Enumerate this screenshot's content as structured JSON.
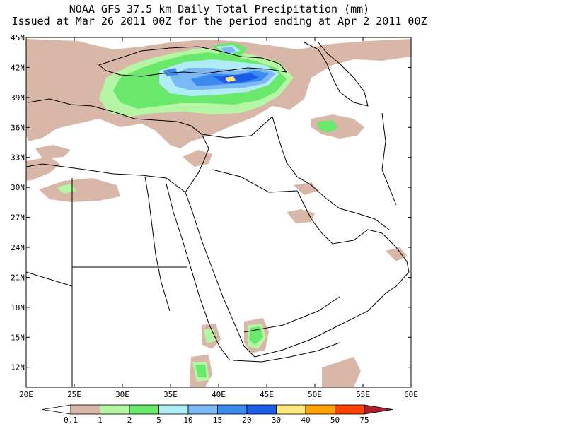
{
  "title": {
    "line1": "NOAA GFS 37.5 km Daily Total Precipitation (mm)",
    "line2": "Issued at Mar 26 2011 00Z for the period ending at Apr 2 2011 00Z"
  },
  "map": {
    "lon_range": [
      20,
      60
    ],
    "lat_range": [
      10,
      45
    ],
    "lat_ticks": [
      {
        "value": 45,
        "label": "45N"
      },
      {
        "value": 42,
        "label": "42N"
      },
      {
        "value": 39,
        "label": "39N"
      },
      {
        "value": 36,
        "label": "36N"
      },
      {
        "value": 33,
        "label": "33N"
      },
      {
        "value": 30,
        "label": "30N"
      },
      {
        "value": 27,
        "label": "27N"
      },
      {
        "value": 24,
        "label": "24N"
      },
      {
        "value": 21,
        "label": "21N"
      },
      {
        "value": 18,
        "label": "18N"
      },
      {
        "value": 15,
        "label": "15N"
      },
      {
        "value": 12,
        "label": "12N"
      }
    ],
    "lon_ticks": [
      {
        "value": 20,
        "label": "20E"
      },
      {
        "value": 25,
        "label": "25E"
      },
      {
        "value": 30,
        "label": "30E"
      },
      {
        "value": 35,
        "label": "35E"
      },
      {
        "value": 40,
        "label": "40E"
      },
      {
        "value": 45,
        "label": "45E"
      },
      {
        "value": 50,
        "label": "50E"
      },
      {
        "value": 55,
        "label": "55E"
      },
      {
        "value": 60,
        "label": "60E"
      }
    ]
  },
  "legend": {
    "bins": [
      {
        "color": "#ffffff"
      },
      {
        "color": "#d8b7a8"
      },
      {
        "color": "#b4f6a4"
      },
      {
        "color": "#6ae86c"
      },
      {
        "color": "#b0ecf6"
      },
      {
        "color": "#7cb8f4"
      },
      {
        "color": "#3c8cf0"
      },
      {
        "color": "#1c5ce8"
      },
      {
        "color": "#fde77c"
      },
      {
        "color": "#ffa200"
      },
      {
        "color": "#ff4400"
      },
      {
        "color": "#a8202a"
      }
    ],
    "labels": [
      "0.1",
      "1",
      "2",
      "5",
      "10",
      "15",
      "20",
      "30",
      "40",
      "50",
      "75"
    ]
  }
}
